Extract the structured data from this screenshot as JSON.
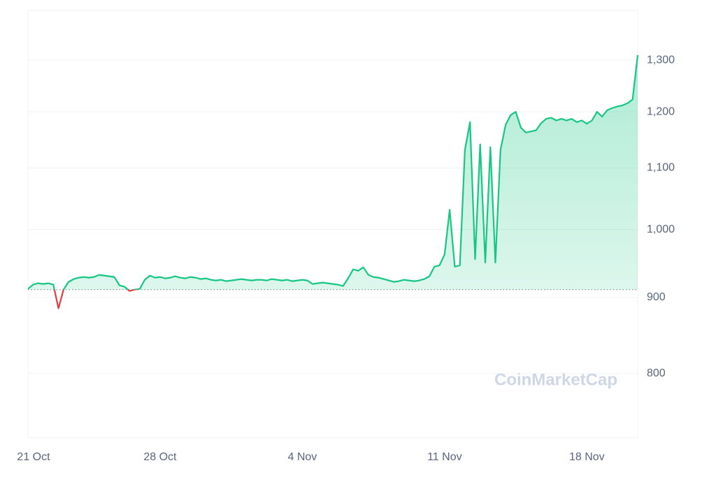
{
  "chart_data": {
    "type": "line",
    "watermark": "CoinMarketCap",
    "log_scale": true,
    "grid": true,
    "color": "#16c784",
    "down_color": "#ea3943",
    "baseline": 911,
    "ylim": [
      724,
      1404
    ],
    "yticks": [
      800,
      900,
      {
        "value": 1000,
        "label": "1,000"
      },
      {
        "value": 1100,
        "label": "1,100"
      },
      {
        "value": 1200,
        "label": "1,200"
      },
      {
        "value": 1300,
        "label": "1,300"
      }
    ],
    "categories": [
      "21 Oct",
      null,
      null,
      null,
      null,
      null,
      null,
      null,
      null,
      null,
      null,
      null,
      null,
      null,
      null,
      null,
      null,
      null,
      null,
      null,
      null,
      null,
      null,
      null,
      null,
      null,
      "28 Oct",
      null,
      null,
      null,
      null,
      null,
      null,
      null,
      null,
      null,
      null,
      null,
      null,
      null,
      null,
      null,
      null,
      null,
      null,
      null,
      null,
      null,
      null,
      null,
      null,
      null,
      null,
      null,
      "4 Nov",
      null,
      null,
      null,
      null,
      null,
      null,
      null,
      null,
      null,
      null,
      null,
      null,
      null,
      null,
      null,
      null,
      null,
      null,
      null,
      null,
      null,
      null,
      null,
      null,
      null,
      null,
      null,
      "11 Nov",
      null,
      null,
      null,
      null,
      null,
      null,
      null,
      null,
      null,
      null,
      null,
      null,
      null,
      null,
      null,
      null,
      null,
      null,
      null,
      null,
      null,
      null,
      null,
      null,
      null,
      null,
      null,
      "18 Nov",
      null,
      null,
      null,
      null,
      null,
      null,
      null,
      null,
      null,
      null
    ],
    "values": [
      912,
      918,
      920,
      919,
      920,
      918,
      885,
      911,
      922,
      926,
      928,
      929,
      928,
      929,
      932,
      931,
      930,
      929,
      917,
      915,
      909,
      911,
      912,
      925,
      931,
      928,
      929,
      927,
      928,
      930,
      928,
      927,
      929,
      928,
      926,
      927,
      925,
      924,
      925,
      923,
      924,
      925,
      926,
      925,
      924,
      925,
      925,
      924,
      926,
      925,
      924,
      925,
      923,
      924,
      925,
      924,
      919,
      920,
      921,
      920,
      919,
      918,
      916,
      927,
      940,
      938,
      943,
      932,
      929,
      928,
      926,
      924,
      922,
      923,
      925,
      924,
      923,
      924,
      926,
      930,
      944,
      946,
      962,
      1031,
      944,
      946,
      1131,
      1181,
      955,
      1141,
      950,
      1136,
      950,
      1131,
      1176,
      1194,
      1200,
      1171,
      1162,
      1164,
      1166,
      1179,
      1187,
      1189,
      1184,
      1187,
      1184,
      1187,
      1181,
      1184,
      1178,
      1184,
      1200,
      1191,
      1203,
      1207,
      1210,
      1212,
      1216,
      1223,
      1310
    ]
  }
}
